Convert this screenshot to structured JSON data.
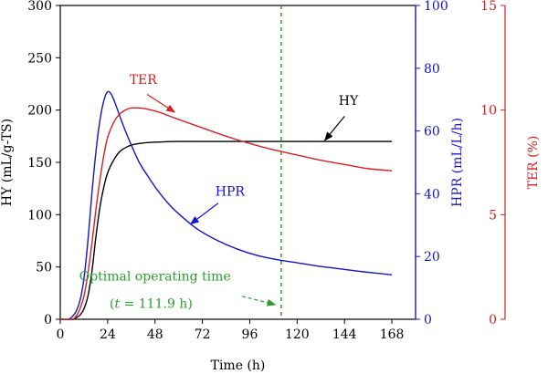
{
  "chart_data": {
    "type": "line",
    "xlabel": "Time (h)",
    "x_ticks": [
      0,
      24,
      48,
      72,
      96,
      120,
      144,
      168
    ],
    "xlim": [
      0,
      180
    ],
    "axes": {
      "left": {
        "label": "HY (mL/g-TS)",
        "ylim": [
          0,
          300
        ],
        "ticks": [
          0,
          50,
          100,
          150,
          200,
          250,
          300
        ],
        "color": "#000000"
      },
      "right1": {
        "label": "HPR (mL/L/h)",
        "ylim": [
          0,
          100
        ],
        "ticks": [
          0,
          20,
          40,
          60,
          80,
          100
        ],
        "color": "#1414c8"
      },
      "right2": {
        "label": "TER (%)",
        "ylim": [
          0,
          15
        ],
        "ticks": [
          0,
          5,
          10,
          15
        ],
        "color": "#d42020"
      }
    },
    "series": [
      {
        "name": "HY",
        "axis": "left",
        "color": "#000000",
        "x": [
          0,
          6,
          8,
          10,
          12,
          14,
          16,
          18,
          20,
          22,
          24,
          27,
          30,
          33,
          36,
          40,
          45,
          50,
          60,
          80,
          100,
          120,
          140,
          160,
          168
        ],
        "y": [
          0,
          0,
          1.5,
          4,
          10,
          22,
          45,
          78,
          106,
          126,
          140,
          152,
          160,
          164,
          166.5,
          168,
          169,
          169.5,
          170,
          170,
          170,
          170,
          170,
          170,
          170
        ]
      },
      {
        "name": "HPR",
        "axis": "right1",
        "color": "#1414c8",
        "x": [
          0,
          4,
          6,
          8,
          10,
          12,
          14,
          16,
          18,
          20,
          22,
          24,
          26,
          28,
          30,
          33,
          36,
          40,
          45,
          50,
          56,
          62,
          70,
          80,
          90,
          100,
          110,
          120,
          130,
          140,
          150,
          160,
          168
        ],
        "y": [
          0,
          0,
          0.8,
          2.5,
          6,
          13,
          25,
          40,
          53,
          63,
          69.5,
          72.5,
          71.5,
          68.5,
          65,
          60,
          55.5,
          50,
          45,
          40.5,
          36,
          32.5,
          28.5,
          25,
          22.3,
          20.3,
          19,
          18,
          17,
          16.2,
          15.4,
          14.7,
          14.2
        ]
      },
      {
        "name": "TER",
        "axis": "right2",
        "color": "#d42020",
        "x": [
          0,
          6,
          8,
          10,
          12,
          14,
          16,
          18,
          20,
          22,
          24,
          27,
          30,
          33,
          36,
          40,
          44,
          50,
          60,
          72,
          84,
          96,
          108,
          120,
          132,
          144,
          156,
          168
        ],
        "y": [
          0,
          0,
          0.15,
          0.5,
          1.1,
          2.2,
          3.6,
          5.2,
          6.6,
          7.8,
          8.7,
          9.4,
          9.8,
          10.0,
          10.1,
          10.1,
          10.05,
          9.9,
          9.55,
          9.15,
          8.75,
          8.4,
          8.1,
          7.85,
          7.6,
          7.4,
          7.2,
          7.1
        ]
      }
    ],
    "vline": {
      "x": 111.9,
      "color": "#2aa02a",
      "style": "dashed"
    },
    "annotations": [
      {
        "text": "TER",
        "color": "#d42020",
        "text_at": [
          42,
          225
        ],
        "arrow_from": [
          44,
          215
        ],
        "arrow_to": [
          58,
          198
        ]
      },
      {
        "text": "HY",
        "color": "#000000",
        "text_at": [
          146,
          205
        ],
        "arrow_from": [
          144,
          194
        ],
        "arrow_to": [
          134,
          171
        ]
      },
      {
        "text": "HPR",
        "color": "#1414c8",
        "text_at": [
          86,
          118
        ],
        "arrow_from": [
          80,
          111
        ],
        "arrow_to": [
          66,
          91
        ]
      },
      {
        "text": "Optimal operating time",
        "color": "#2aa02a",
        "text_at": [
          48,
          37
        ],
        "arrow_from": [
          92,
          22
        ],
        "arrow_to": [
          109,
          14
        ]
      },
      {
        "text_parts": [
          "(",
          "t",
          " = 111.9 h)"
        ],
        "color": "#2aa02a",
        "text_at": [
          46,
          11
        ]
      }
    ]
  }
}
